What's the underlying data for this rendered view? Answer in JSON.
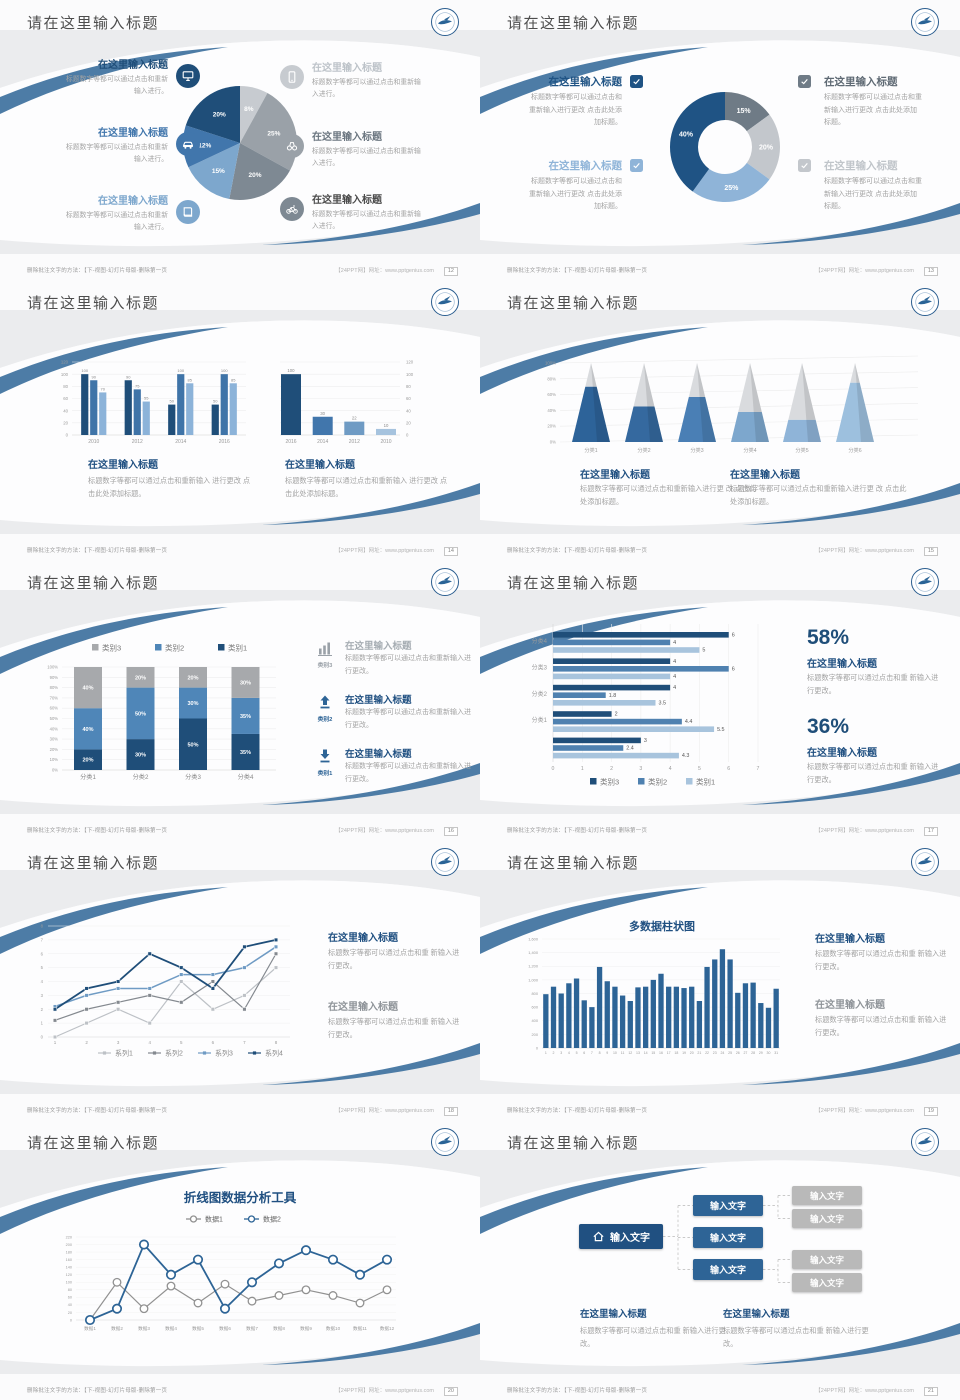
{
  "footer": {
    "left": "删除批注文字的方法：【下-视图-幻灯片母版-删除第一页",
    "right": "【24PPT网】网址：www.pptgenius.com"
  },
  "slides": [
    {
      "title": "请在这里输入标题",
      "page": "12",
      "kind": "pie",
      "chart_data": {
        "type": "pie",
        "slices": [
          {
            "label": "8%",
            "value": 8,
            "color": "#c7cbd0"
          },
          {
            "label": "25%",
            "value": 25,
            "color": "#9aa1a8"
          },
          {
            "label": "20%",
            "value": 20,
            "color": "#7e8993"
          },
          {
            "label": "15%",
            "value": 15,
            "color": "#7da7cd"
          },
          {
            "label": "12%",
            "value": 12,
            "color": "#4176ac"
          },
          {
            "label": "20%",
            "value": 20,
            "color": "#1f4e79"
          }
        ]
      },
      "left": [
        {
          "title": "在这里输入标题",
          "body": "标题数字等都可以通过点击和重新输入进行。",
          "color": "#1f4e79",
          "icon": "monitor-icon"
        },
        {
          "title": "在这里输入标题",
          "body": "标题数字等都可以通过点击和重新输入进行。",
          "color": "#4176ac",
          "icon": "car-icon"
        },
        {
          "title": "在这里输入标题",
          "body": "标题数字等都可以通过点击和重新输入进行。",
          "color": "#7da7cd",
          "icon": "book-icon"
        }
      ],
      "right": [
        {
          "title": "在这里输入标题",
          "body": "标题数字等都可以通过点击和重新输入进行。",
          "color": "#bdc3c9",
          "iconBg": "#c7cbd0",
          "icon": "phone-icon"
        },
        {
          "title": "在这里输入标题",
          "body": "标题数字等都可以通过点击和重新输入进行。",
          "color": "#6b7680",
          "iconBg": "#9aa1a8",
          "icon": "binoculars-icon"
        },
        {
          "title": "在这里输入标题",
          "body": "标题数字等都可以通过点击和重新输入进行。",
          "color": "#4a4a4a",
          "iconBg": "#7e8993",
          "icon": "bicycle-icon"
        }
      ]
    },
    {
      "title": "请在这里输入标题",
      "page": "13",
      "kind": "donut",
      "chart_data": {
        "type": "pie",
        "donut": true,
        "slices": [
          {
            "label": "15%",
            "value": 15,
            "color": "#6f7b86"
          },
          {
            "label": "20%",
            "value": 20,
            "color": "#c3c7cc"
          },
          {
            "label": "25%",
            "value": 25,
            "color": "#8fb4d8"
          },
          {
            "label": "40%",
            "value": 40,
            "color": "#1f5384"
          }
        ]
      },
      "left": [
        {
          "title": "在这里输入标题",
          "body": "标题数字等都可以通过点击和重新输入进行更改 点击此处添加标题。",
          "color": "#1f5384"
        },
        {
          "title": "在这里输入标题",
          "body": "标题数字等都可以通过点击和重新输入进行更改 点击此处添加标题。",
          "color": "#8fb4d8"
        }
      ],
      "right": [
        {
          "title": "在这里输入标题",
          "body": "标题数字等都可以通过点击和重新输入进行更改 点击此处添加标题。",
          "color": "#6f7b86",
          "titleColor": "#5f6a74"
        },
        {
          "title": "在这里输入标题",
          "body": "标题数字等都可以通过点击和重新输入进行更改 点击此处添加标题。",
          "color": "#c3c7cc",
          "titleColor": "#c0c5ca"
        }
      ]
    },
    {
      "title": "请在这里输入标题",
      "page": "14",
      "kind": "twobars",
      "chart_data": [
        {
          "type": "bar",
          "categories": [
            "2010",
            "2012",
            "2014",
            "2016"
          ],
          "series": [
            {
              "name": "系列1",
              "color": "#1f4e79",
              "values": [
                100,
                90,
                50,
                50
              ]
            },
            {
              "name": "系列2",
              "color": "#3f74a8",
              "values": [
                90,
                75,
                100,
                100
              ]
            },
            {
              "name": "系列3",
              "color": "#8cb3d9",
              "values": [
                70,
                55,
                85,
                85
              ]
            }
          ],
          "ylim": [
            0,
            120
          ],
          "yticks": [
            0,
            20,
            40,
            60,
            80,
            100,
            120
          ],
          "axis_side": "left"
        },
        {
          "type": "bar",
          "categories": [
            "2016",
            "2014",
            "2012",
            "2010"
          ],
          "values": [
            100,
            30,
            22,
            10
          ],
          "bar_colors": [
            "#1f4e79",
            "#4176ac",
            "#6f9bc4",
            "#a6c3de"
          ],
          "ylim": [
            0,
            120
          ],
          "yticks": [
            0,
            20,
            40,
            60,
            80,
            100,
            120
          ],
          "axis_side": "right"
        }
      ],
      "sections": [
        {
          "title": "在这里输入标题",
          "body": "标题数字等都可以通过点击和重新输入 进行更改 点击此处添加标题。"
        },
        {
          "title": "在这里输入标题",
          "body": "标题数字等都可以通过点击和重新输入 进行更改 点击此处添加标题。"
        }
      ]
    },
    {
      "title": "请在这里输入标题",
      "page": "15",
      "kind": "pyramid",
      "chart_data": {
        "type": "bar",
        "style": "pyramid",
        "categories": [
          "分类1",
          "分类2",
          "分类3",
          "分类4",
          "分类5",
          "分类6"
        ],
        "values_pct": [
          70,
          45,
          57,
          38,
          28,
          75
        ],
        "colors": [
          "#2d6399",
          "#35699f",
          "#4a7fb5",
          "#7da7cd",
          "#8fb4d8",
          "#9dc0de"
        ],
        "yticks": [
          "0%",
          "20%",
          "40%",
          "60%",
          "80%",
          "100%"
        ]
      },
      "sections": [
        {
          "title": "在这里输入标题",
          "body": "标题数字等都可以通过点击和重新输入进行更 改 点击此处添加标题。"
        },
        {
          "title": "在这里输入标题",
          "body": "标题数字等都可以通过点击和重新输入进行更 改 点击此处添加标题。"
        }
      ]
    },
    {
      "title": "请在这里输入标题",
      "page": "16",
      "kind": "stacked",
      "chart_data": {
        "type": "bar",
        "style": "stacked-100",
        "categories": [
          "分类1",
          "分类2",
          "分类3",
          "分类4"
        ],
        "series": [
          {
            "name": "类别1",
            "color": "#1f4e79",
            "values": [
              20,
              30,
              50,
              35
            ]
          },
          {
            "name": "类别2",
            "color": "#4f86b8",
            "values": [
              40,
              50,
              30,
              35
            ]
          },
          {
            "name": "类别3",
            "color": "#a7a9ac",
            "values": [
              40,
              20,
              20,
              30
            ]
          }
        ],
        "legend": [
          "类别3",
          "类别2",
          "类别1"
        ],
        "legend_colors": [
          "#a7a9ac",
          "#4f86b8",
          "#1f4e79"
        ],
        "yticks": [
          "0%",
          "10%",
          "20%",
          "30%",
          "40%",
          "50%",
          "60%",
          "70%",
          "80%",
          "90%",
          "100%"
        ]
      },
      "callouts": [
        {
          "icon": "bar-chart-icon",
          "label": "类别3",
          "labelColor": "#9aa1a8",
          "titleColor": "#a6adb3",
          "title": "在这里输入标题",
          "body": "标题数字等都可以通过点击和重新输入进行更改。"
        },
        {
          "icon": "arrow-up-icon",
          "label": "类别2",
          "labelColor": "#2e6496",
          "titleColor": "#205081",
          "title": "在这里输入标题",
          "body": "标题数字等都可以通过点击和重新输入进行更改。"
        },
        {
          "icon": "arrow-down-icon",
          "label": "类别1",
          "labelColor": "#2e6496",
          "titleColor": "#205081",
          "title": "在这里输入标题",
          "body": "标题数字等都可以通过点击和重新输入进行更改。"
        }
      ]
    },
    {
      "title": "请在这里输入标题",
      "page": "17",
      "kind": "hbar",
      "chart_data": {
        "type": "bar",
        "orientation": "horizontal",
        "groups": [
          {
            "label": "分类4",
            "values": [
              6,
              4,
              5
            ]
          },
          {
            "label": "分类3",
            "values": [
              4,
              6,
              4
            ]
          },
          {
            "label": "分类2",
            "values": [
              4,
              1.8,
              3.5
            ]
          },
          {
            "label": "分类1",
            "values": [
              2,
              4.4,
              5.5
            ]
          },
          {
            "label": "",
            "values": [
              3,
              2.4,
              4.3
            ]
          }
        ],
        "series_colors": [
          "#1f4e79",
          "#4f81b0",
          "#a8c4dd"
        ],
        "legend": [
          {
            "label": "类别3",
            "color": "#1f4e79"
          },
          {
            "label": "类别2",
            "color": "#4f81b0"
          },
          {
            "label": "类别1",
            "color": "#a8c4dd"
          }
        ],
        "xticks": [
          0,
          1,
          2,
          3,
          4,
          5,
          6,
          7
        ]
      },
      "stats": [
        {
          "pct": "58%",
          "title": "在这里输入标题",
          "body": "标题数字等都可以通过点击和重 新输入进行更改。"
        },
        {
          "pct": "36%",
          "title": "在这里输入标题",
          "body": "标题数字等都可以通过点击和重 新输入进行更改。"
        }
      ]
    },
    {
      "title": "请在这里输入标题",
      "page": "18",
      "kind": "line4",
      "chart_data": {
        "type": "line",
        "x": [
          "1",
          "2",
          "3",
          "4",
          "5",
          "6",
          "7",
          "8"
        ],
        "yticks": [
          0,
          1,
          2,
          3,
          4,
          5,
          6,
          7,
          8
        ],
        "series": [
          {
            "name": "系列1",
            "color": "#bdc1c6",
            "values": [
              0,
              1,
              2,
              1,
              4,
              2,
              3,
              5
            ]
          },
          {
            "name": "系列2",
            "color": "#84898f",
            "values": [
              1.2,
              2,
              2.5,
              3,
              2.5,
              4,
              2,
              6
            ]
          },
          {
            "name": "系列3",
            "color": "#6f9bc4",
            "values": [
              2.2,
              3,
              3.5,
              3.5,
              4.5,
              4.5,
              5,
              6.5
            ]
          },
          {
            "name": "系列4",
            "color": "#1f4e79",
            "values": [
              2,
              3.5,
              4,
              6,
              5,
              3.5,
              6.5,
              7
            ]
          }
        ],
        "legend_position": "bottom"
      },
      "blocks": [
        {
          "title": "在这里输入标题",
          "titleColor": "#205081",
          "body": "标题数字等都可以通过点击和重 新输入进行更改。"
        },
        {
          "title": "在这里输入标题",
          "titleColor": "#8f9499",
          "body": "标题数字等都可以通过点击和重 新输入进行更改。"
        }
      ]
    },
    {
      "title": "请在这里输入标题",
      "page": "19",
      "kind": "columns",
      "chart_data": {
        "type": "bar",
        "title": "多数据柱状图",
        "x": [
          "1",
          "2",
          "3",
          "4",
          "5",
          "6",
          "7",
          "8",
          "9",
          "10",
          "11",
          "12",
          "13",
          "14",
          "15",
          "16",
          "17",
          "18",
          "19",
          "20",
          "21",
          "22",
          "23",
          "24",
          "25",
          "26",
          "27",
          "28",
          "29",
          "30",
          "31"
        ],
        "values": [
          790,
          900,
          800,
          950,
          1020,
          700,
          600,
          1190,
          980,
          900,
          770,
          690,
          890,
          900,
          1000,
          1090,
          900,
          900,
          880,
          900,
          690,
          1190,
          1300,
          1450,
          1300,
          810,
          950,
          960,
          660,
          590,
          870
        ],
        "color": "#2d6496",
        "yticks": [
          "0",
          "200",
          "400",
          "600",
          "800",
          "1,000",
          "1,200",
          "1,400",
          "1,600"
        ],
        "ylim": [
          0,
          1600
        ]
      },
      "blocks": [
        {
          "title": "在这里输入标题",
          "titleColor": "#205081",
          "body": "标题数字等都可以通过点击和重 新输入进行更改。"
        },
        {
          "title": "在这里输入标题",
          "titleColor": "#8f9499",
          "body": "标题数字等都可以通过点击和重 新输入进行更改。"
        }
      ]
    },
    {
      "title": "请在这里输入标题",
      "page": "20",
      "kind": "line2",
      "chart_data": {
        "type": "line",
        "title": "折线图数据分析工具",
        "x": [
          "数据1",
          "数据2",
          "数据3",
          "数据4",
          "数据5",
          "数据6",
          "数据7",
          "数据8",
          "数据9",
          "数据10",
          "数据11",
          "数据12"
        ],
        "ylim": [
          0,
          220
        ],
        "ytick_step": 20,
        "series": [
          {
            "name": "数据1",
            "color": "#919191",
            "values": [
              0,
              100,
              30,
              90,
              45,
              95,
              50,
              65,
              80,
              65,
              45,
              80
            ]
          },
          {
            "name": "数据2",
            "color": "#2d6496",
            "values": [
              0,
              30,
              200,
              120,
              160,
              30,
              100,
              150,
              185,
              160,
              120,
              160
            ]
          }
        ],
        "legend_position": "top"
      }
    },
    {
      "title": "请在这里输入标题",
      "page": "21",
      "kind": "tree",
      "root": {
        "label": "输入文字",
        "icon": "home-icon",
        "color": "#205081"
      },
      "mid": [
        {
          "label": "输入文字"
        },
        {
          "label": "输入文字"
        },
        {
          "label": "输入文字"
        }
      ],
      "mid_color": "#2e6496",
      "leaves": [
        {
          "label": "输入文字"
        },
        {
          "label": "输入文字"
        },
        {
          "label": "输入文字"
        },
        {
          "label": "输入文字"
        }
      ],
      "leaf_color": "#b9b9b9",
      "blocks": [
        {
          "title": "在这里输入标题",
          "body": "标题数字等都可以通过点击和重 新输入进行更改。"
        },
        {
          "title": "在这里输入标题",
          "body": "标题数字等都可以通过点击和重 新输入进行更改。"
        }
      ]
    }
  ]
}
